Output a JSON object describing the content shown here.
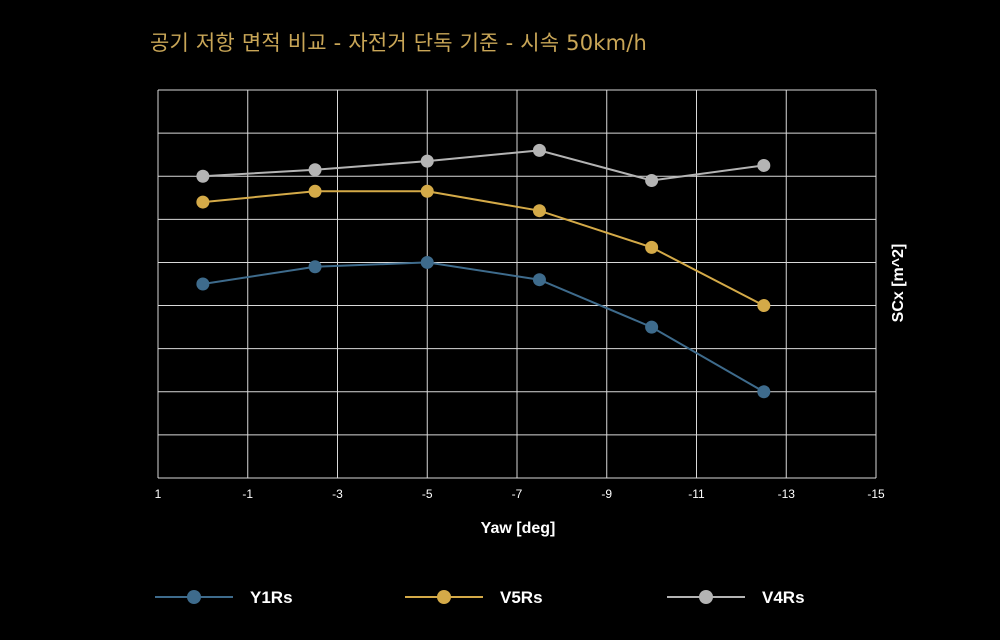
{
  "chart_data": {
    "type": "line",
    "title": "공기 저항 면적 비교 - 자전거 단독 기준 - 시속 50km/h",
    "xlabel": "Yaw [deg]",
    "ylabel": "SCx [m^2]",
    "x_ticks": [
      "1",
      "-1",
      "-3",
      "-5",
      "-7",
      "-9",
      "-11",
      "-13",
      "-15"
    ],
    "xlim": [
      1,
      -15
    ],
    "ylim": [
      0,
      9
    ],
    "grid": true,
    "legend_position": "bottom",
    "x": [
      0,
      -2.5,
      -5,
      -7.5,
      -10,
      -12.5
    ],
    "series": [
      {
        "name": "Y1Rs",
        "color": "#3e6b8c",
        "values": [
          4.5,
          4.9,
          5.0,
          4.6,
          3.5,
          2.0
        ]
      },
      {
        "name": "V5Rs",
        "color": "#d4aa48",
        "values": [
          6.4,
          6.65,
          6.65,
          6.2,
          5.35,
          4.0
        ]
      },
      {
        "name": "V4Rs",
        "color": "#b4b4b4",
        "values": [
          7.0,
          7.15,
          7.35,
          7.6,
          6.9,
          7.25
        ]
      }
    ]
  }
}
